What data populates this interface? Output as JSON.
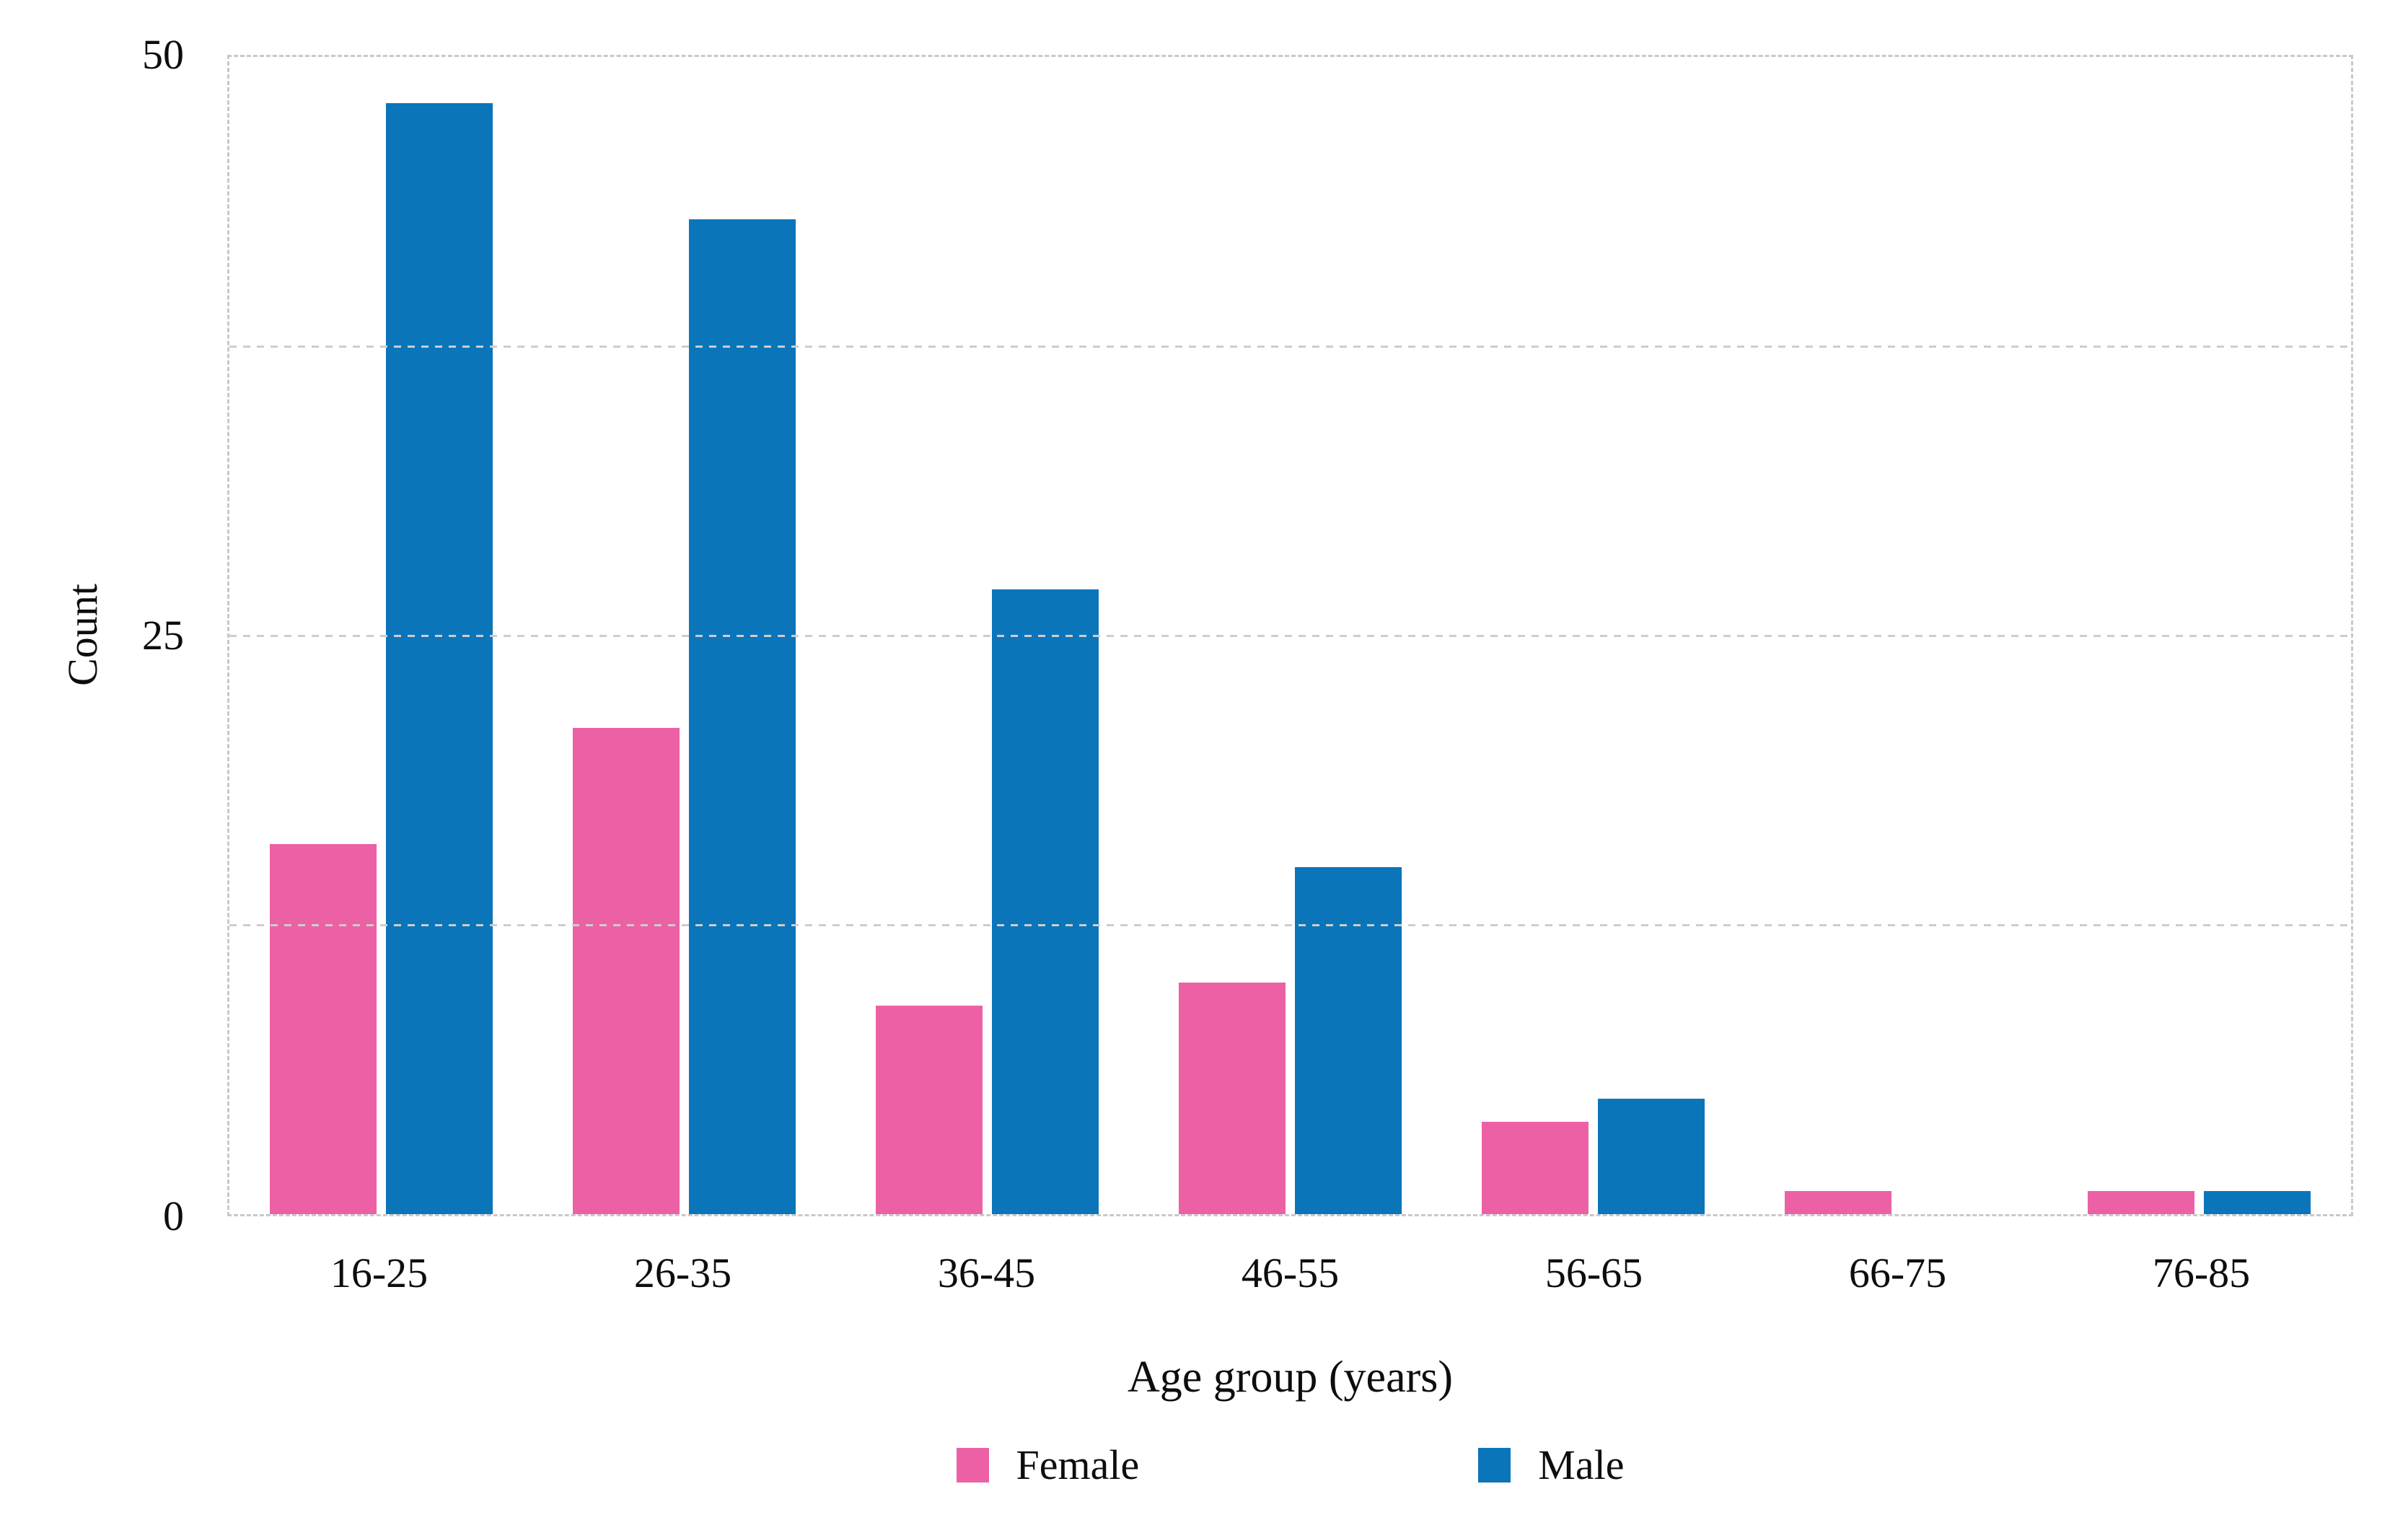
{
  "chart_data": {
    "type": "bar",
    "title": "",
    "categories": [
      "16-25",
      "26-35",
      "36-45",
      "46-55",
      "56-65",
      "66-75",
      "76-85"
    ],
    "series": [
      {
        "name": "Female",
        "color": "#ec61a5",
        "values": [
          16,
          21,
          9,
          10,
          4,
          1,
          1
        ]
      },
      {
        "name": "Male",
        "color": "#0b75ba",
        "values": [
          48,
          43,
          27,
          15,
          5,
          0,
          1
        ]
      }
    ],
    "xlabel": "Age group (years)",
    "ylabel": "Count",
    "ylim": [
      0,
      50
    ],
    "yticks": [
      0,
      25,
      50
    ],
    "minor_grid_values": [
      12.5,
      25,
      37.5
    ],
    "grid": "horizontal-dashed",
    "grid_color": "#cdcdcd",
    "border_color": "#c9c9c9",
    "background": "#ffffff",
    "legend_position": "bottom"
  }
}
